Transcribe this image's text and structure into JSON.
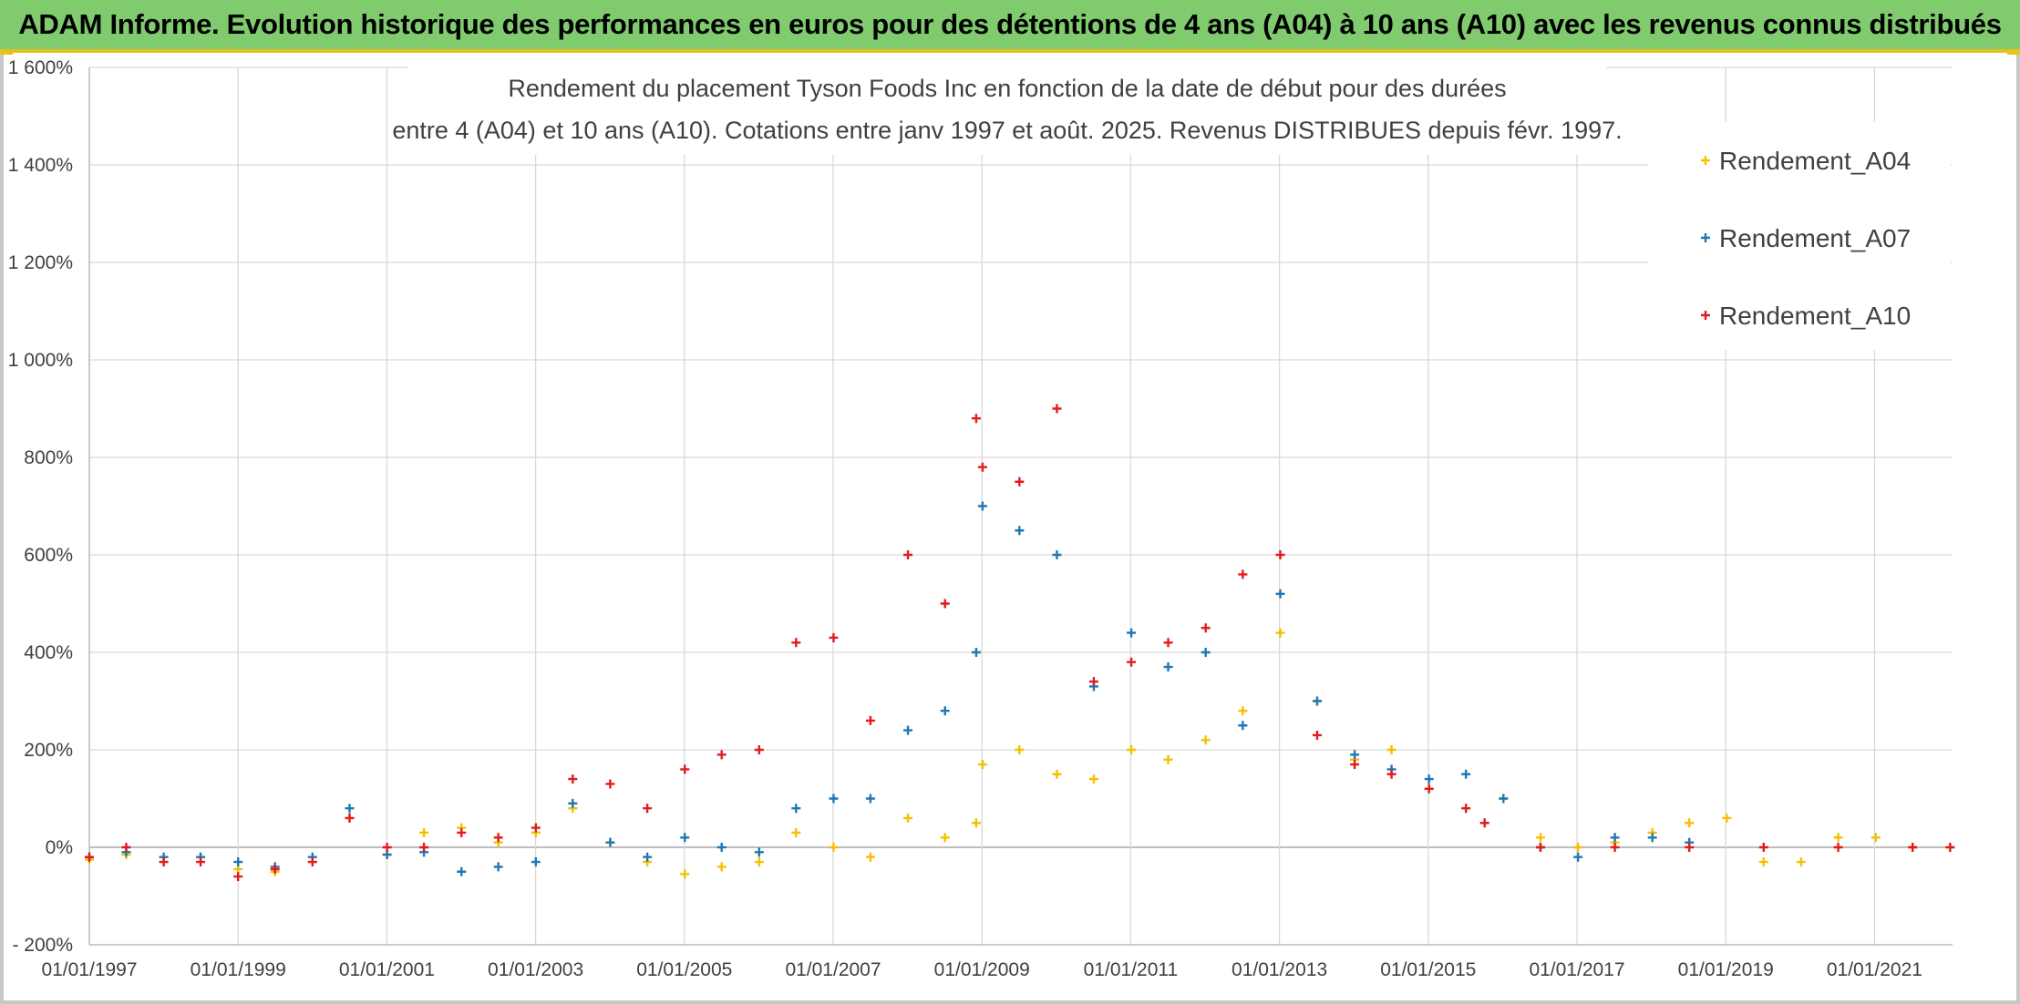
{
  "banner": {
    "title": "ADAM Informe. Evolution historique des performances en euros pour des détentions de 4 ans (A04) à 10 ans (A10) avec les revenus connus distribués"
  },
  "colors": {
    "banner_bg": "#7fcb6e",
    "banner_border": "#e6c21a",
    "A04": "#f5c000",
    "A07": "#1f77b4",
    "A10": "#e41a1c"
  },
  "chart_data": {
    "type": "scatter",
    "title_line1": "Rendement du placement Tyson Foods Inc en fonction de la date de début pour des durées",
    "title_line2": "entre 4 (A04) et 10 ans (A10). Cotations entre janv 1997 et août. 2025. Revenus DISTRIBUES depuis févr. 1997.",
    "xlabel": "",
    "ylabel": "",
    "x_ticks": [
      "01/01/1997",
      "01/01/1999",
      "01/01/2001",
      "01/01/2003",
      "01/01/2005",
      "01/01/2007",
      "01/01/2009",
      "01/01/2011",
      "01/01/2013",
      "01/01/2015",
      "01/01/2017",
      "01/01/2019",
      "01/01/2021"
    ],
    "y_ticks": [
      "- 200%",
      "0%",
      "200%",
      "400%",
      "600%",
      "800%",
      "1 000%",
      "1 200%",
      "1 400%",
      "1 600%"
    ],
    "xlim": [
      "1997-01-01",
      "2022-01-01"
    ],
    "ylim": [
      -200,
      1600
    ],
    "legend_position": "top-right",
    "grid": true,
    "marker": "+",
    "series": [
      {
        "name": "Rendement_A04",
        "color": "#f5c000",
        "x": [
          "1997-01-01",
          "1997-07-01",
          "1998-01-01",
          "1998-07-01",
          "1999-01-01",
          "1999-07-01",
          "2000-01-01",
          "2000-07-01",
          "2001-01-01",
          "2001-07-01",
          "2002-01-01",
          "2002-07-01",
          "2003-01-01",
          "2003-07-01",
          "2004-01-01",
          "2004-07-01",
          "2005-01-01",
          "2005-07-01",
          "2006-01-01",
          "2006-07-01",
          "2007-01-01",
          "2007-07-01",
          "2008-01-01",
          "2008-07-01",
          "2008-12-01",
          "2009-01-01",
          "2009-07-01",
          "2010-01-01",
          "2010-07-01",
          "2011-01-01",
          "2011-07-01",
          "2012-01-01",
          "2012-07-01",
          "2013-01-01",
          "2013-07-01",
          "2014-01-01",
          "2014-07-01",
          "2015-01-01",
          "2015-07-01",
          "2016-01-01",
          "2016-07-01",
          "2017-01-01",
          "2017-07-01",
          "2018-01-01",
          "2018-07-01",
          "2019-01-01",
          "2019-07-01",
          "2020-01-01",
          "2020-07-01",
          "2021-01-01",
          "2021-07-01",
          "2022-01-01"
        ],
        "y": [
          -25,
          -15,
          -30,
          -20,
          -45,
          -50,
          -30,
          60,
          -15,
          30,
          40,
          10,
          30,
          80,
          10,
          -30,
          -55,
          -40,
          -30,
          30,
          0,
          -20,
          60,
          20,
          50,
          170,
          200,
          150,
          140,
          200,
          180,
          220,
          280,
          440,
          300,
          180,
          200,
          120,
          80,
          100,
          20,
          0,
          10,
          30,
          50,
          60,
          -30,
          -30,
          20,
          20,
          0,
          0
        ]
      },
      {
        "name": "Rendement_A07",
        "color": "#1f77b4",
        "x": [
          "1997-01-01",
          "1997-07-01",
          "1998-01-01",
          "1998-07-01",
          "1999-01-01",
          "1999-07-01",
          "2000-01-01",
          "2000-07-01",
          "2001-01-01",
          "2001-07-01",
          "2002-01-01",
          "2002-07-01",
          "2003-01-01",
          "2003-07-01",
          "2004-01-01",
          "2004-07-01",
          "2005-01-01",
          "2005-07-01",
          "2006-01-01",
          "2006-07-01",
          "2007-01-01",
          "2007-07-01",
          "2008-01-01",
          "2008-07-01",
          "2008-12-01",
          "2009-01-01",
          "2009-07-01",
          "2010-01-01",
          "2010-07-01",
          "2011-01-01",
          "2011-07-01",
          "2012-01-01",
          "2012-07-01",
          "2013-01-01",
          "2013-07-01",
          "2014-01-01",
          "2014-07-01",
          "2015-01-01",
          "2015-07-01",
          "2016-01-01",
          "2016-07-01",
          "2017-01-01",
          "2017-07-01",
          "2018-01-01",
          "2018-07-01"
        ],
        "y": [
          -20,
          -10,
          -20,
          -20,
          -30,
          -40,
          -20,
          80,
          -15,
          -10,
          -50,
          -40,
          -30,
          90,
          10,
          -20,
          20,
          0,
          -10,
          80,
          100,
          100,
          240,
          280,
          400,
          700,
          650,
          600,
          330,
          440,
          370,
          400,
          250,
          520,
          300,
          190,
          160,
          140,
          150,
          100,
          0,
          -20,
          20,
          20,
          10
        ]
      },
      {
        "name": "Rendement_A10",
        "color": "#e41a1c",
        "x": [
          "1997-01-01",
          "1997-07-01",
          "1998-01-01",
          "1998-07-01",
          "1999-01-01",
          "1999-07-01",
          "2000-01-01",
          "2000-07-01",
          "2001-01-01",
          "2001-07-01",
          "2002-01-01",
          "2002-07-01",
          "2003-01-01",
          "2003-07-01",
          "2004-01-01",
          "2004-07-01",
          "2005-01-01",
          "2005-07-01",
          "2006-01-01",
          "2006-07-01",
          "2007-01-01",
          "2007-07-01",
          "2008-01-01",
          "2008-07-01",
          "2008-12-01",
          "2009-01-01",
          "2009-07-01",
          "2010-01-01",
          "2010-07-01",
          "2011-01-01",
          "2011-07-01",
          "2012-01-01",
          "2012-07-01",
          "2013-01-01",
          "2013-07-01",
          "2014-01-01",
          "2014-07-01",
          "2015-01-01",
          "2015-07-01",
          "2015-10-01",
          "2016-07-01",
          "2017-07-01",
          "2018-07-01",
          "2019-07-01",
          "2020-07-01",
          "2021-07-01",
          "2022-01-01"
        ],
        "y": [
          -20,
          0,
          -30,
          -30,
          -60,
          -45,
          -30,
          60,
          0,
          0,
          30,
          20,
          40,
          140,
          130,
          80,
          160,
          190,
          200,
          420,
          430,
          260,
          600,
          500,
          880,
          780,
          750,
          900,
          340,
          380,
          420,
          450,
          560,
          600,
          230,
          170,
          150,
          120,
          80,
          50,
          0,
          0,
          0,
          0,
          0,
          0,
          0
        ]
      }
    ]
  }
}
